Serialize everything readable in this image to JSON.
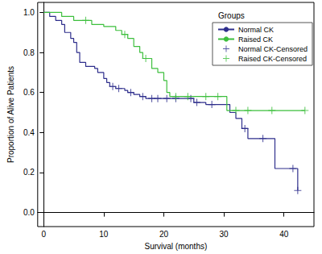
{
  "chart_data": {
    "type": "step",
    "x_label": "Survival (months)",
    "y_label": "Proportion of Alive Patients",
    "legend_title": "Groups",
    "legend": "upper right",
    "grid": false,
    "xlim": [
      -1,
      45
    ],
    "xticks": [
      0,
      10,
      20,
      30,
      40
    ],
    "ylim": [
      -0.07,
      1.05
    ],
    "yticks": [
      {
        "value": 0,
        "label": "0.0"
      },
      0.2,
      0.4,
      0.6,
      0.8,
      {
        "value": 1,
        "label": "1.0"
      }
    ],
    "series": [
      {
        "name": "Normal CK",
        "type": "step",
        "color": "#2e2e8c",
        "x": [
          0,
          1,
          2,
          3,
          3.5,
          4.5,
          5,
          5.5,
          6,
          7,
          8.5,
          9,
          10,
          10.5,
          11,
          12,
          13.5,
          14,
          15,
          16,
          17,
          25,
          27,
          31,
          32,
          33,
          34,
          38.5,
          42.3
        ],
        "values": [
          1.0,
          0.98,
          0.96,
          0.94,
          0.9,
          0.87,
          0.85,
          0.8,
          0.75,
          0.73,
          0.72,
          0.7,
          0.67,
          0.65,
          0.63,
          0.62,
          0.61,
          0.6,
          0.59,
          0.58,
          0.57,
          0.55,
          0.54,
          0.5,
          0.47,
          0.42,
          0.37,
          0.22,
          0.11
        ]
      },
      {
        "name": "Raised CK",
        "type": "step",
        "color": "#3dbf3d",
        "x": [
          0,
          3,
          5,
          8,
          10,
          12,
          13,
          14,
          15,
          16,
          16.5,
          18,
          19,
          20,
          20.5,
          21,
          30.5,
          43.5
        ],
        "values": [
          1.0,
          0.98,
          0.96,
          0.94,
          0.93,
          0.91,
          0.89,
          0.87,
          0.83,
          0.8,
          0.77,
          0.72,
          0.7,
          0.66,
          0.6,
          0.58,
          0.51,
          0.51
        ]
      },
      {
        "name": "Normal CK-Censored",
        "type": "scatter",
        "marker": "plus",
        "color": "#2e2e8c",
        "x": [
          11.5,
          12.5,
          14.5,
          16.5,
          18,
          19,
          20.5,
          22,
          24.5,
          25.5,
          28,
          33.5,
          36.5,
          41.5,
          42.3
        ],
        "values": [
          0.63,
          0.62,
          0.6,
          0.58,
          0.57,
          0.57,
          0.57,
          0.57,
          0.57,
          0.55,
          0.54,
          0.42,
          0.37,
          0.22,
          0.11
        ]
      },
      {
        "name": "Raised CK-Censored",
        "type": "scatter",
        "marker": "plus",
        "color": "#3dbf3d",
        "x": [
          7,
          13.5,
          17,
          22,
          24,
          27,
          29,
          32,
          34,
          38,
          43.5
        ],
        "values": [
          0.96,
          0.89,
          0.77,
          0.58,
          0.58,
          0.58,
          0.58,
          0.51,
          0.51,
          0.51,
          0.51
        ]
      }
    ]
  }
}
